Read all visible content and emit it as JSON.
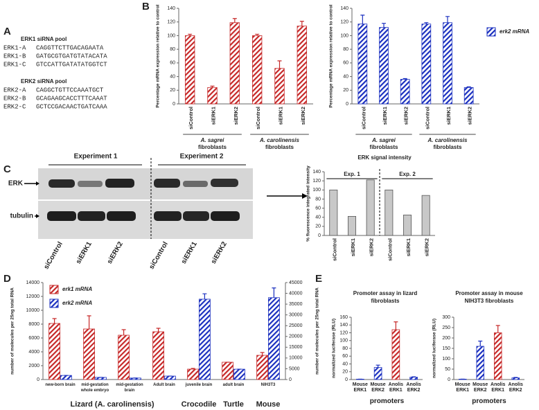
{
  "panel_labels": [
    "A",
    "B",
    "C",
    "D",
    "E"
  ],
  "sirna": {
    "pools": [
      {
        "title": "ERK1 siRNA pool",
        "rows": [
          {
            "name": "ERK1-A",
            "sequence": "CAGGTTCTTGACAGAATA"
          },
          {
            "name": "ERK1-B",
            "sequence": "GATGCGTGATGTATACATA"
          },
          {
            "name": "ERK1-C",
            "sequence": "GTCCATTGATATATGGTCT"
          }
        ]
      },
      {
        "title": "ERK2 siRNA pool",
        "rows": [
          {
            "name": "ERK2-A",
            "sequence": "CAGGCTGTTCCAAATGCT"
          },
          {
            "name": "ERK2-B",
            "sequence": "GCAGAAGCACCTTTCAAAT"
          },
          {
            "name": "ERK2-C",
            "sequence": "GCTCCGACAACTGATCAAA"
          }
        ]
      }
    ]
  },
  "blot": {
    "experiments": [
      "Experiment 1",
      "Experiment 2"
    ],
    "bands": [
      "ERK",
      "tubulin"
    ],
    "lanes": [
      "siControl",
      "siERK1",
      "siERK2",
      "siControl",
      "siERK1",
      "siERK2"
    ]
  },
  "chart_data": [
    {
      "type": "bar",
      "y_label": "Percentage mRNA expression relative to control",
      "categories": [
        "siControl",
        "siERK1",
        "siERK2",
        "siControl",
        "siERK1",
        "siERK2"
      ],
      "groups": [
        {
          "label": "A. sagrei",
          "sublabel": "fibroblasts"
        },
        {
          "label": "A. carolinensis",
          "sublabel": "fibroblasts"
        }
      ],
      "series": [
        {
          "name": "erk1 mRNA",
          "color": "#c62828",
          "values": [
            100,
            24,
            119,
            100,
            52,
            114
          ],
          "errors": [
            2,
            2,
            6,
            2,
            11,
            7
          ]
        }
      ],
      "hatch": true,
      "legend": "right",
      "ylim": [
        0,
        140
      ],
      "yticks": [
        0,
        20,
        40,
        60,
        80,
        100,
        120,
        140
      ]
    },
    {
      "type": "bar",
      "y_label": "Percentage mRNA expression relative to control",
      "categories": [
        "siControl",
        "siERK1",
        "siERK2",
        "siControl",
        "siERK1",
        "siERK2"
      ],
      "groups": [
        {
          "label": "A. sagrei",
          "sublabel": "fibroblasts"
        },
        {
          "label": "A. carolinensis",
          "sublabel": "fibroblasts"
        }
      ],
      "series": [
        {
          "name": "erk2 mRNA",
          "color": "#1a2fbf",
          "values": [
            117,
            112,
            36,
            117,
            119,
            24
          ],
          "errors": [
            13,
            6,
            1,
            2,
            9,
            1
          ]
        }
      ],
      "hatch": true,
      "legend": "right",
      "ylim": [
        0,
        140
      ],
      "yticks": [
        0,
        20,
        40,
        60,
        80,
        100,
        120,
        140
      ]
    },
    {
      "type": "bar",
      "title": "ERK signal intensity",
      "y_label": "% fluorescence integrated intensity",
      "categories": [
        "siControl",
        "siERK1",
        "siERK2",
        "siControl",
        "siERK1",
        "siERK2"
      ],
      "groups": [
        {
          "label": "Exp. 1"
        },
        {
          "label": "Exp. 2"
        }
      ],
      "values": [
        100,
        42,
        122,
        100,
        45,
        88
      ],
      "color": "#c8c8c8",
      "hatch": false,
      "ylim": [
        0,
        140
      ],
      "yticks": [
        0,
        20,
        40,
        60,
        80,
        100,
        120,
        140
      ]
    },
    {
      "type": "bar",
      "y_label": "number of molecules per 25ng total RNA",
      "y2_label": "number of molecules per 25ng total RNA",
      "categories": [
        "new-born brain",
        "mid-gestation whole embryo",
        "mid-gestation brain",
        "Adult brain",
        "juvenile brain",
        "adult brain",
        "NIH3T3"
      ],
      "groups": [
        {
          "label": "Lizard (A. carolinensis)"
        },
        {
          "label": "Crocodile"
        },
        {
          "label": "Turtle"
        },
        {
          "label": "Mouse"
        }
      ],
      "series": [
        {
          "name": "erk1 mRNA",
          "color": "#c62828",
          "values": [
            8100,
            7300,
            6400,
            6900,
            1500,
            2500,
            3500
          ],
          "errors": [
            700,
            1900,
            800,
            500,
            100,
            0,
            400
          ]
        },
        {
          "name": "erk2 mRNA",
          "color": "#1a2fbf",
          "axis": "y2",
          "values": [
            1900,
            1000,
            700,
            1600,
            37300,
            4800,
            38000
          ],
          "errors": [
            0,
            0,
            0,
            0,
            2500,
            0,
            4500
          ]
        }
      ],
      "hatch": true,
      "legend": "upper left",
      "ylim": [
        0,
        14000
      ],
      "yticks": [
        0,
        2000,
        4000,
        6000,
        8000,
        10000,
        12000,
        14000
      ],
      "y2lim": [
        0,
        45000
      ],
      "y2ticks": [
        0,
        5000,
        10000,
        15000,
        20000,
        25000,
        30000,
        35000,
        40000,
        45000
      ]
    },
    {
      "type": "bar",
      "title": "Promoter assay in lizard fibroblasts",
      "y_label": "normalized luciferase (RLU)",
      "x_label": "promoters",
      "categories": [
        "Mouse ERK1",
        "Mouse ERK2",
        "Anolis ERK1",
        "Anolis ERK2"
      ],
      "values": [
        1,
        31,
        128,
        6
      ],
      "errors": [
        0,
        6,
        20,
        1
      ],
      "colors": [
        "#1a2fbf",
        "#1a2fbf",
        "#c62828",
        "#1a2fbf"
      ],
      "hatch": true,
      "ylim": [
        0,
        160
      ],
      "yticks": [
        0,
        20,
        40,
        60,
        80,
        100,
        120,
        140,
        160
      ]
    },
    {
      "type": "bar",
      "title": "Promoter assay in mouse NIH3T3 fibroblasts",
      "y_label": "normalized luciferase (RLU)",
      "x_label": "promoters",
      "categories": [
        "Mouse ERK1",
        "Mouse ERK2",
        "Anolis ERK1",
        "Anolis ERK2"
      ],
      "values": [
        2,
        160,
        225,
        8
      ],
      "errors": [
        0,
        25,
        35,
        2
      ],
      "colors": [
        "#1a2fbf",
        "#1a2fbf",
        "#c62828",
        "#1a2fbf"
      ],
      "hatch": true,
      "ylim": [
        0,
        300
      ],
      "yticks": [
        0,
        50,
        100,
        150,
        200,
        250,
        300
      ]
    }
  ]
}
